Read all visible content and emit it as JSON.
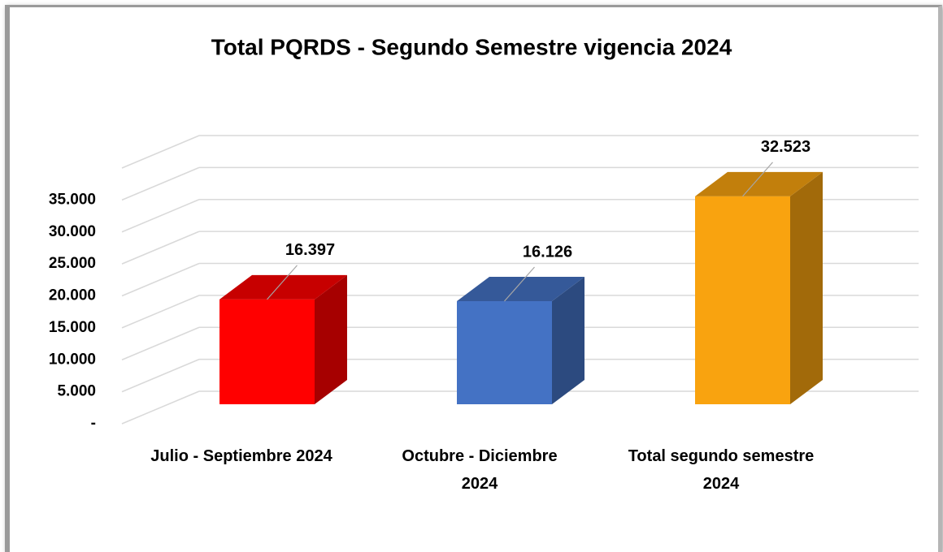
{
  "chart_data": {
    "type": "bar3d",
    "title": "Total PQRDS - Segundo Semestre vigencia 2024",
    "categories": [
      "Julio - Septiembre 2024",
      "Octubre - Diciembre 2024",
      "Total segundo semestre 2024"
    ],
    "values": [
      16397,
      16126,
      32523
    ],
    "value_labels": [
      "16.397",
      "16.126",
      "32.523"
    ],
    "colors": [
      "#ff0000",
      "#4472c4",
      "#f9a30f"
    ],
    "ylim": [
      0,
      40000
    ],
    "yticks": [
      {
        "value": 0,
        "label": "-"
      },
      {
        "value": 5000,
        "label": "5.000"
      },
      {
        "value": 10000,
        "label": "10.000"
      },
      {
        "value": 15000,
        "label": "15.000"
      },
      {
        "value": 20000,
        "label": "20.000"
      },
      {
        "value": 25000,
        "label": "25.000"
      },
      {
        "value": 30000,
        "label": "30.000"
      },
      {
        "value": 35000,
        "label": "35.000"
      }
    ],
    "grid": true
  }
}
